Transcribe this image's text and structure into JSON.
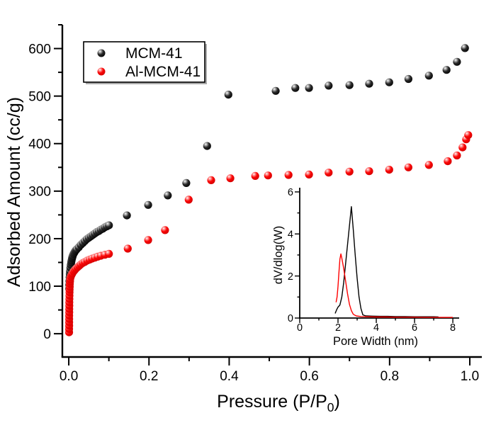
{
  "figure": {
    "background": "#ffffff"
  },
  "chart_data": [
    {
      "id": "main",
      "type": "scatter",
      "title": "",
      "xlabel": "Pressure (P/P0)",
      "xlabel_parts": {
        "pre": "Pressure (P/P",
        "sub": "0",
        "post": ")"
      },
      "ylabel": "Adsorbed Amount (cc/g)",
      "xlim": [
        -0.016,
        1.03
      ],
      "ylim": [
        -49,
        650
      ],
      "grid": false,
      "legend_position": "top-left",
      "x_ticks": [
        0.0,
        0.2,
        0.4,
        0.6,
        0.8,
        1.0
      ],
      "x_tick_labels": [
        "0.0",
        "0.2",
        "0.4",
        "0.6",
        "0.8",
        "1.0"
      ],
      "x_minor_ticks": [
        0.1,
        0.3,
        0.5,
        0.7,
        0.9
      ],
      "y_ticks": [
        0,
        100,
        200,
        300,
        400,
        500,
        600
      ],
      "y_tick_labels": [
        "0",
        "100",
        "200",
        "300",
        "400",
        "500",
        "600"
      ],
      "y_minor_ticks": [
        50,
        150,
        250,
        350,
        450,
        550,
        650
      ],
      "series": [
        {
          "name": "MCM-41",
          "color": "#000000",
          "marker": "sphere-3d",
          "points": [
            [
              0.001,
              95
            ],
            [
              0.0012,
              103
            ],
            [
              0.0015,
              111
            ],
            [
              0.002,
              119
            ],
            [
              0.0025,
              126
            ],
            [
              0.003,
              132
            ],
            [
              0.004,
              139
            ],
            [
              0.005,
              145
            ],
            [
              0.006,
              150
            ],
            [
              0.007,
              154
            ],
            [
              0.008,
              158
            ],
            [
              0.009,
              161
            ],
            [
              0.01,
              164
            ],
            [
              0.012,
              168
            ],
            [
              0.014,
              171
            ],
            [
              0.016,
              174
            ],
            [
              0.018,
              176
            ],
            [
              0.02,
              178
            ],
            [
              0.025,
              182
            ],
            [
              0.03,
              187
            ],
            [
              0.035,
              191
            ],
            [
              0.04,
              195
            ],
            [
              0.045,
              199
            ],
            [
              0.05,
              202
            ],
            [
              0.055,
              205
            ],
            [
              0.06,
              208
            ],
            [
              0.065,
              211
            ],
            [
              0.07,
              214
            ],
            [
              0.075,
              216
            ],
            [
              0.08,
              219
            ],
            [
              0.085,
              221
            ],
            [
              0.09,
              224
            ],
            [
              0.095,
              226
            ],
            [
              0.1,
              228
            ],
            [
              0.145,
              249
            ],
            [
              0.198,
              271
            ],
            [
              0.247,
              291
            ],
            [
              0.293,
              317
            ],
            [
              0.345,
              395
            ],
            [
              0.398,
              503
            ],
            [
              0.516,
              511
            ],
            [
              0.565,
              517
            ],
            [
              0.599,
              517
            ],
            [
              0.648,
              522
            ],
            [
              0.7,
              523
            ],
            [
              0.749,
              526
            ],
            [
              0.799,
              529
            ],
            [
              0.847,
              536
            ],
            [
              0.898,
              543
            ],
            [
              0.942,
              555
            ],
            [
              0.968,
              572
            ],
            [
              0.988,
              601
            ]
          ]
        },
        {
          "name": "Al-MCM-41",
          "color": "#ff0000",
          "marker": "sphere-3d",
          "points": [
            [
              0.0008,
              3
            ],
            [
              0.0008,
              10
            ],
            [
              0.0009,
              17
            ],
            [
              0.0009,
              24
            ],
            [
              0.001,
              31
            ],
            [
              0.001,
              38
            ],
            [
              0.0011,
              45
            ],
            [
              0.0012,
              52
            ],
            [
              0.0013,
              59
            ],
            [
              0.0014,
              66
            ],
            [
              0.0015,
              73
            ],
            [
              0.0016,
              80
            ],
            [
              0.0018,
              87
            ],
            [
              0.002,
              93
            ],
            [
              0.0023,
              99
            ],
            [
              0.0026,
              105
            ],
            [
              0.003,
              110
            ],
            [
              0.0035,
              115
            ],
            [
              0.005,
              120
            ],
            [
              0.007,
              124
            ],
            [
              0.009,
              127
            ],
            [
              0.012,
              131
            ],
            [
              0.015,
              134
            ],
            [
              0.018,
              137
            ],
            [
              0.022,
              140
            ],
            [
              0.026,
              143
            ],
            [
              0.03,
              146
            ],
            [
              0.035,
              149
            ],
            [
              0.04,
              151
            ],
            [
              0.046,
              154
            ],
            [
              0.052,
              156
            ],
            [
              0.058,
              158
            ],
            [
              0.065,
              160
            ],
            [
              0.072,
              162
            ],
            [
              0.08,
              164
            ],
            [
              0.09,
              166
            ],
            [
              0.1,
              168
            ],
            [
              0.147,
              179
            ],
            [
              0.198,
              197
            ],
            [
              0.24,
              218
            ],
            [
              0.299,
              282
            ],
            [
              0.355,
              323
            ],
            [
              0.403,
              327
            ],
            [
              0.465,
              332
            ],
            [
              0.497,
              333
            ],
            [
              0.548,
              334
            ],
            [
              0.599,
              335
            ],
            [
              0.648,
              339
            ],
            [
              0.7,
              341
            ],
            [
              0.749,
              342
            ],
            [
              0.799,
              345
            ],
            [
              0.847,
              350
            ],
            [
              0.898,
              355
            ],
            [
              0.945,
              363
            ],
            [
              0.968,
              375
            ],
            [
              0.982,
              392
            ],
            [
              0.991,
              409
            ],
            [
              0.996,
              418
            ]
          ]
        }
      ]
    },
    {
      "id": "inset",
      "type": "line",
      "title": "",
      "xlabel": "Pore Width (nm)",
      "ylabel": "dV/dlog(W)",
      "xlim": [
        0,
        8.33
      ],
      "ylim": [
        0,
        6.2
      ],
      "grid": false,
      "x_ticks": [
        0,
        2,
        4,
        6,
        8
      ],
      "x_tick_labels": [
        "0",
        "2",
        "4",
        "6",
        "8"
      ],
      "x_minor_ticks": [
        1,
        3,
        5,
        7
      ],
      "y_ticks": [
        0,
        2,
        4,
        6
      ],
      "y_tick_labels": [
        "0",
        "2",
        "4",
        "6"
      ],
      "y_minor_ticks": [
        1,
        3,
        5
      ],
      "series": [
        {
          "name": "MCM-41",
          "color": "#000000",
          "points": [
            [
              1.85,
              0.22
            ],
            [
              1.92,
              0.38
            ],
            [
              2.0,
              0.52
            ],
            [
              2.1,
              0.62
            ],
            [
              2.2,
              1.0
            ],
            [
              2.3,
              1.7
            ],
            [
              2.4,
              2.6
            ],
            [
              2.5,
              3.5
            ],
            [
              2.6,
              4.4
            ],
            [
              2.7,
              5.3
            ],
            [
              2.8,
              4.2
            ],
            [
              2.9,
              3.0
            ],
            [
              3.0,
              1.9
            ],
            [
              3.1,
              1.0
            ],
            [
              3.2,
              0.45
            ],
            [
              3.3,
              0.15
            ],
            [
              3.45,
              0.1
            ],
            [
              3.8,
              0.09
            ],
            [
              4.2,
              0.08
            ],
            [
              4.6,
              0.08
            ],
            [
              5.0,
              0.07
            ],
            [
              5.5,
              0.07
            ],
            [
              6.0,
              0.06
            ],
            [
              6.5,
              0.06
            ],
            [
              7.0,
              0.06
            ],
            [
              7.25,
              0.05
            ]
          ]
        },
        {
          "name": "Al-MCM-41",
          "color": "#ff0000",
          "points": [
            [
              1.9,
              0.75
            ],
            [
              1.95,
              1.0
            ],
            [
              2.0,
              1.5
            ],
            [
              2.05,
              2.2
            ],
            [
              2.1,
              2.8
            ],
            [
              2.15,
              3.05
            ],
            [
              2.2,
              2.85
            ],
            [
              2.3,
              2.35
            ],
            [
              2.4,
              1.75
            ],
            [
              2.5,
              1.15
            ],
            [
              2.6,
              0.65
            ],
            [
              2.7,
              0.35
            ],
            [
              2.8,
              0.18
            ],
            [
              2.95,
              0.1
            ],
            [
              3.2,
              0.07
            ],
            [
              3.6,
              0.06
            ],
            [
              4.0,
              0.05
            ],
            [
              4.5,
              0.05
            ],
            [
              5.0,
              0.04
            ],
            [
              5.5,
              0.04
            ],
            [
              6.0,
              0.04
            ],
            [
              6.5,
              0.03
            ],
            [
              7.0,
              0.03
            ],
            [
              7.5,
              0.03
            ],
            [
              8.0,
              0.03
            ]
          ]
        }
      ]
    }
  ]
}
